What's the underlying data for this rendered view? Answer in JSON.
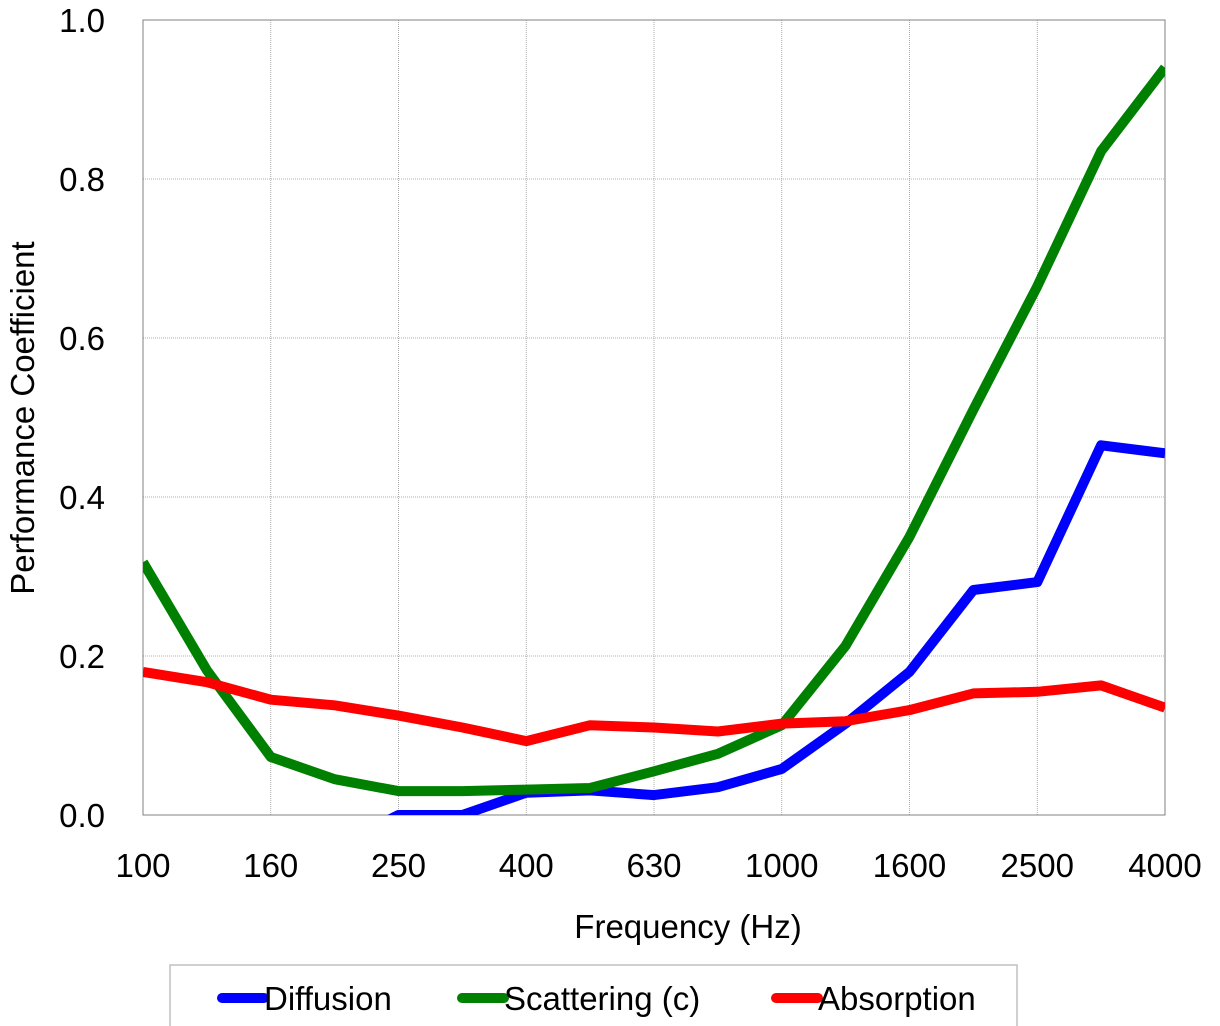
{
  "chart_data": {
    "type": "line",
    "title": "",
    "xlabel": "Frequency (Hz)",
    "ylabel": "Performance Coefficient",
    "ylim": [
      0,
      1.0
    ],
    "yticks": [
      "0.0",
      "0.2",
      "0.4",
      "0.6",
      "0.8",
      "1.0"
    ],
    "x": [
      "100",
      "125",
      "160",
      "200",
      "250",
      "315",
      "400",
      "500",
      "630",
      "800",
      "1000",
      "1250",
      "1600",
      "2000",
      "2500",
      "3150",
      "4000"
    ],
    "xtick_labels": [
      "100",
      "160",
      "250",
      "400",
      "630",
      "1000",
      "1600",
      "2500",
      "4000"
    ],
    "grid": true,
    "legend_position": "bottom",
    "series": [
      {
        "name": "Diffusion",
        "color": "#0000ff",
        "values": [
          null,
          null,
          null,
          -0.04,
          0.0,
          0.0,
          0.028,
          0.031,
          0.025,
          0.035,
          0.058,
          0.115,
          0.18,
          0.283,
          0.293,
          0.465,
          0.455
        ]
      },
      {
        "name": "Scattering (c)",
        "color": "#008000",
        "values": [
          0.318,
          0.182,
          0.073,
          0.045,
          0.03,
          0.03,
          0.032,
          0.034,
          0.055,
          0.077,
          0.113,
          0.213,
          0.35,
          0.51,
          0.665,
          0.835,
          0.94
        ]
      },
      {
        "name": "Absorption",
        "color": "#ff0000",
        "values": [
          0.18,
          0.167,
          0.145,
          0.138,
          0.125,
          0.11,
          0.093,
          0.113,
          0.11,
          0.105,
          0.115,
          0.118,
          0.132,
          0.153,
          0.155,
          0.163,
          0.135
        ]
      }
    ]
  }
}
